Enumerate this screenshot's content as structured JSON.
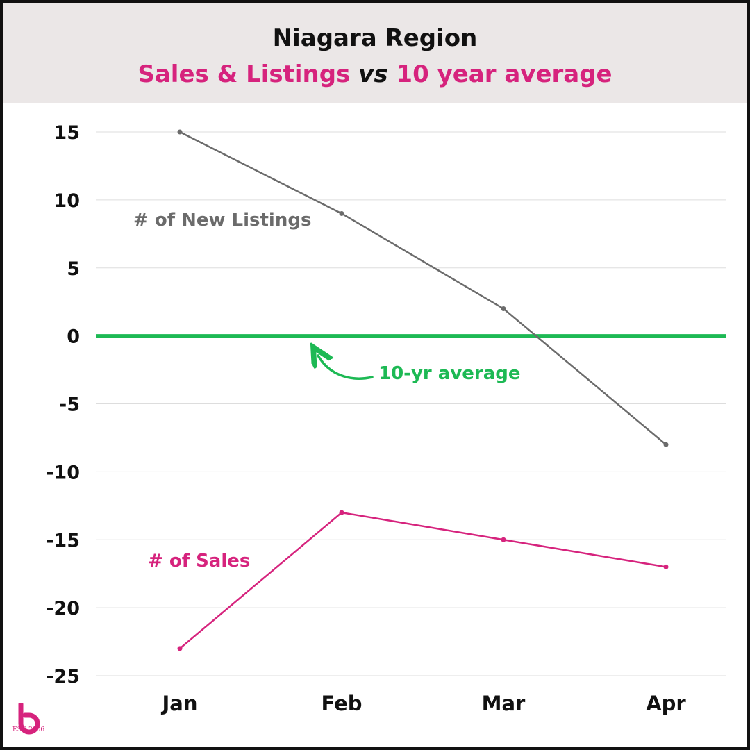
{
  "header": {
    "title": "Niagara Region",
    "subtitle_part1": "Sales & Listings",
    "subtitle_vs": "vs",
    "subtitle_part2": "10 year average"
  },
  "chart_data": {
    "type": "line",
    "categories": [
      "Jan",
      "Feb",
      "Mar",
      "Apr"
    ],
    "ylim": [
      -25,
      15
    ],
    "yticks": [
      15,
      10,
      5,
      0,
      -5,
      -10,
      -15,
      -20,
      -25
    ],
    "grid": true,
    "series": [
      {
        "name": "# of New Listings",
        "values": [
          15,
          9,
          2,
          -8
        ],
        "color": "#6b6b6b"
      },
      {
        "name": "# of Sales",
        "values": [
          -23,
          -13,
          -15,
          -17
        ],
        "color": "#d6237d"
      }
    ],
    "reference_line": {
      "value": 0,
      "label": "10-yr average",
      "color": "#1db954"
    }
  },
  "logo": {
    "glyph": "b",
    "est": "EST. 2006",
    "color": "#d6237d"
  }
}
